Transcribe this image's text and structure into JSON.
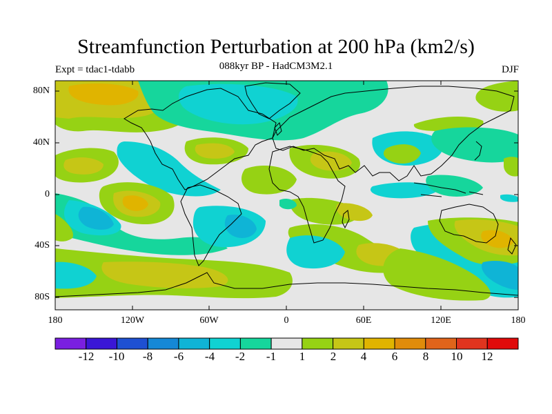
{
  "header": {
    "title": "Streamfunction Perturbation at 200 hPa (km2/s)",
    "subtitle": "088kyr BP - HadCM3M2.1",
    "experiment": "Expt = tdac1-tdabb",
    "season": "DJF"
  },
  "axes": {
    "lat_labels": [
      "80N",
      "40N",
      "0",
      "40S",
      "80S"
    ],
    "lon_labels": [
      "180",
      "120W",
      "60W",
      "0",
      "60E",
      "120E",
      "180"
    ]
  },
  "colorbar": {
    "labels": [
      "-12",
      "-10",
      "-8",
      "-6",
      "-4",
      "-2",
      "-1",
      "1",
      "2",
      "4",
      "6",
      "8",
      "10",
      "12"
    ],
    "colors": [
      "#7a1fe0",
      "#3a16d6",
      "#1e50d2",
      "#1588d6",
      "#0fb4d6",
      "#10d2d2",
      "#16d69c",
      "#e6e6e6",
      "#96d214",
      "#c6c616",
      "#e0b400",
      "#e08c0a",
      "#e0641a",
      "#e0341e",
      "#e00a0a"
    ]
  },
  "map_colors": {
    "background": "#e6e6e6",
    "green_cyan": "#16d69c",
    "cyan": "#10d2d2",
    "light_blue": "#0fb4d6",
    "blue": "#1588d6",
    "yellow_green": "#96d214",
    "olive": "#c6c616",
    "orange": "#e0b400"
  }
}
